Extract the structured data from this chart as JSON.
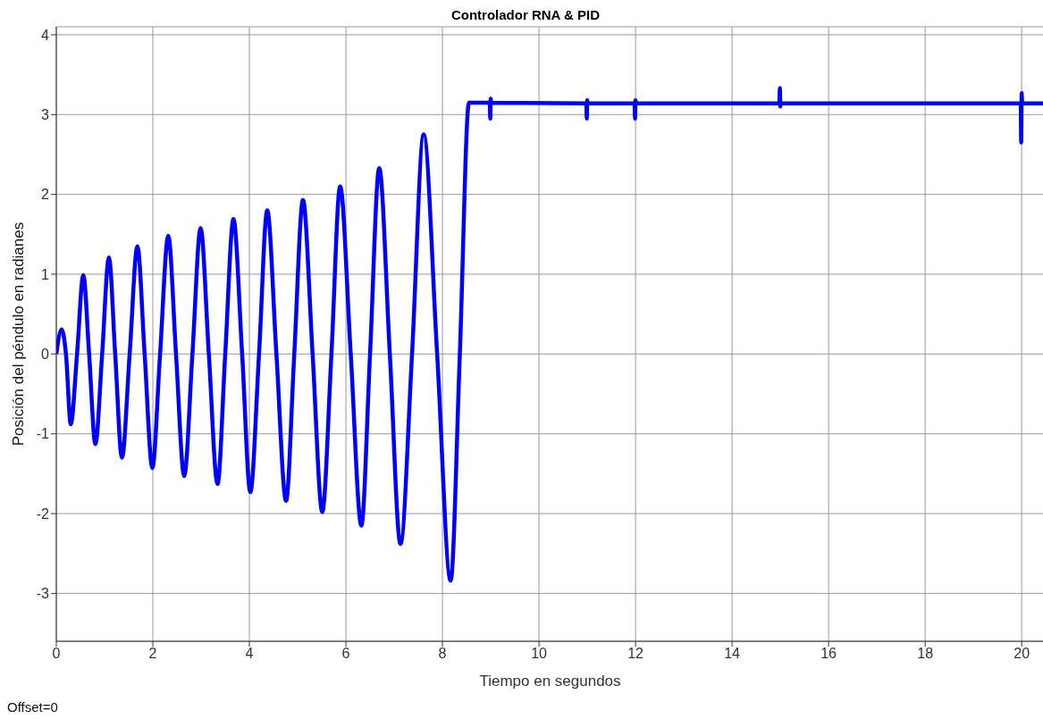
{
  "chart_data": {
    "type": "line",
    "title": "Controlador RNA & PID",
    "xlabel": "Tiempo en segundos",
    "ylabel": "Posición del péndulo en radianes",
    "annotations": [
      "Offset=0"
    ],
    "x": [
      0,
      0.11,
      0.2,
      0.3,
      0.43,
      0.56,
      0.68,
      0.81,
      0.95,
      1.09,
      1.22,
      1.36,
      1.52,
      1.68,
      1.83,
      1.99,
      2.15,
      2.32,
      2.48,
      2.65,
      2.82,
      2.99,
      3.16,
      3.34,
      3.5,
      3.67,
      3.85,
      4.02,
      4.2,
      4.37,
      4.56,
      4.76,
      4.93,
      5.11,
      5.31,
      5.51,
      5.7,
      5.88,
      6.1,
      6.32,
      6.5,
      6.69,
      6.91,
      7.13,
      7.37,
      7.61,
      7.89,
      8.17,
      8.36,
      8.55,
      8.98,
      8.99,
      9.0,
      9.01,
      9.02,
      10.98,
      10.99,
      11.0,
      11.01,
      11.02,
      11.98,
      11.99,
      12.0,
      12.01,
      12.02,
      14.98,
      14.99,
      15.0,
      15.01,
      15.02,
      19.98,
      19.99,
      20.0,
      20.01,
      20.02,
      20.46
    ],
    "series": [
      {
        "color": "#0000ff",
        "values": [
          0,
          0.31,
          0,
          -0.88,
          0,
          0.99,
          0,
          -1.13,
          0,
          1.21,
          0,
          -1.3,
          0,
          1.35,
          0,
          -1.43,
          0,
          1.48,
          0,
          -1.53,
          0,
          1.58,
          0,
          -1.63,
          0,
          1.69,
          0,
          -1.73,
          0,
          1.8,
          0,
          -1.84,
          0,
          1.93,
          0,
          -1.98,
          0,
          2.1,
          0,
          -2.15,
          0,
          2.33,
          0,
          -2.38,
          0,
          2.75,
          0,
          -2.84,
          0,
          3.15,
          3.15,
          2.95,
          3.2,
          3.15,
          3.15,
          3.14,
          2.95,
          3.18,
          3.14,
          3.14,
          3.14,
          2.95,
          3.18,
          3.14,
          3.14,
          3.14,
          3.33,
          3.1,
          3.14,
          3.14,
          3.14,
          2.65,
          3.27,
          3.14,
          3.14,
          3.14
        ]
      }
    ],
    "xlim": [
      0,
      20.46
    ],
    "ylim": [
      -3.6,
      4.1
    ],
    "xticks": [
      0,
      2,
      4,
      6,
      8,
      10,
      12,
      14,
      16,
      18,
      20
    ],
    "yticks": [
      -3,
      -2,
      -1,
      0,
      1,
      2,
      3,
      4
    ],
    "grid": true,
    "legend": false,
    "marker": "none",
    "line_style": "solid"
  }
}
